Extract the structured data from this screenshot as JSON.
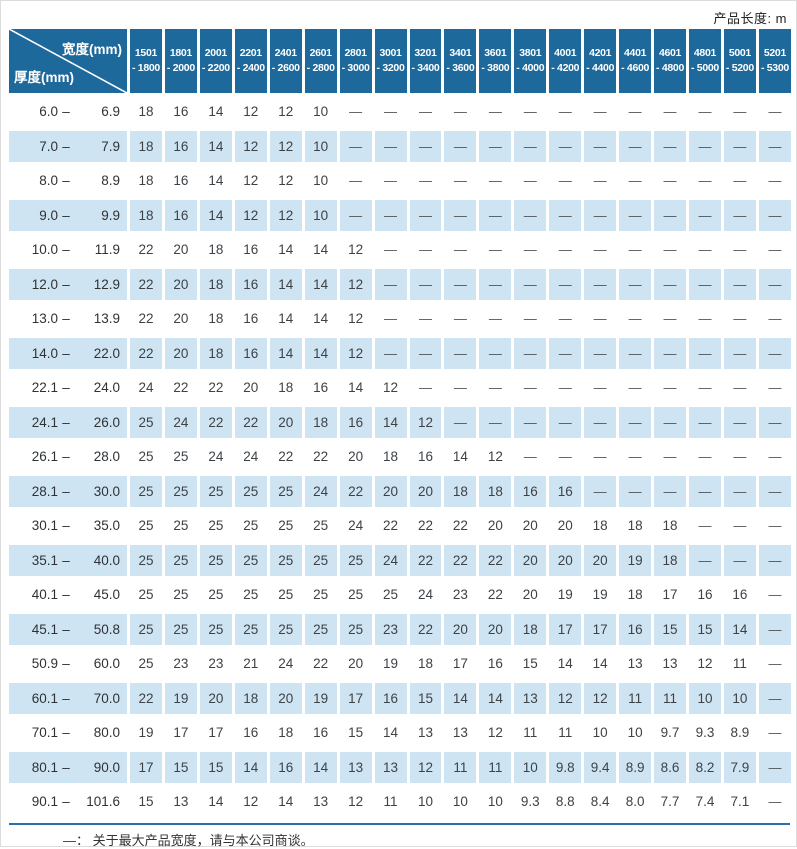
{
  "header_note": "产品长度: m",
  "footnote": "—： 关于最大产品宽度，请与本公司商谈。",
  "colors": {
    "header_blue": "#1d699c",
    "row_blue": "#cfe4f2",
    "rule_blue": "#2b6ea9",
    "text": "#3d4247"
  },
  "table": {
    "corner": {
      "top_right": "宽度(mm)",
      "bottom_left": "厚度(mm)"
    },
    "columns": [
      "1501 - 1800",
      "1801 - 2000",
      "2001 - 2200",
      "2201 - 2400",
      "2401 - 2600",
      "2601 - 2800",
      "2801 - 3000",
      "3001 - 3200",
      "3201 - 3400",
      "3401 - 3600",
      "3601 - 3800",
      "3801 - 4000",
      "4001 - 4200",
      "4201 - 4400",
      "4401 - 4600",
      "4601 - 4800",
      "4801 - 5000",
      "5001 - 5200",
      "5201 - 5300"
    ],
    "rows": [
      {
        "label": "6.0 – 6.9",
        "values": [
          "18",
          "16",
          "14",
          "12",
          "12",
          "10",
          "—",
          "—",
          "—",
          "—",
          "—",
          "—",
          "—",
          "—",
          "—",
          "—",
          "—",
          "—",
          "—"
        ]
      },
      {
        "label": "7.0 – 7.9",
        "values": [
          "18",
          "16",
          "14",
          "12",
          "12",
          "10",
          "—",
          "—",
          "—",
          "—",
          "—",
          "—",
          "—",
          "—",
          "—",
          "—",
          "—",
          "—",
          "—"
        ]
      },
      {
        "label": "8.0 – 8.9",
        "values": [
          "18",
          "16",
          "14",
          "12",
          "12",
          "10",
          "—",
          "—",
          "—",
          "—",
          "—",
          "—",
          "—",
          "—",
          "—",
          "—",
          "—",
          "—",
          "—"
        ]
      },
      {
        "label": "9.0 – 9.9",
        "values": [
          "18",
          "16",
          "14",
          "12",
          "12",
          "10",
          "—",
          "—",
          "—",
          "—",
          "—",
          "—",
          "—",
          "—",
          "—",
          "—",
          "—",
          "—",
          "—"
        ]
      },
      {
        "label": "10.0 – 11.9",
        "values": [
          "22",
          "20",
          "18",
          "16",
          "14",
          "14",
          "12",
          "—",
          "—",
          "—",
          "—",
          "—",
          "—",
          "—",
          "—",
          "—",
          "—",
          "—",
          "—"
        ]
      },
      {
        "label": "12.0 – 12.9",
        "values": [
          "22",
          "20",
          "18",
          "16",
          "14",
          "14",
          "12",
          "—",
          "—",
          "—",
          "—",
          "—",
          "—",
          "—",
          "—",
          "—",
          "—",
          "—",
          "—"
        ]
      },
      {
        "label": "13.0 – 13.9",
        "values": [
          "22",
          "20",
          "18",
          "16",
          "14",
          "14",
          "12",
          "—",
          "—",
          "—",
          "—",
          "—",
          "—",
          "—",
          "—",
          "—",
          "—",
          "—",
          "—"
        ]
      },
      {
        "label": "14.0 – 22.0",
        "values": [
          "22",
          "20",
          "18",
          "16",
          "14",
          "14",
          "12",
          "—",
          "—",
          "—",
          "—",
          "—",
          "—",
          "—",
          "—",
          "—",
          "—",
          "—",
          "—"
        ]
      },
      {
        "label": "22.1 – 24.0",
        "values": [
          "24",
          "22",
          "22",
          "20",
          "18",
          "16",
          "14",
          "12",
          "—",
          "—",
          "—",
          "—",
          "—",
          "—",
          "—",
          "—",
          "—",
          "—",
          "—"
        ]
      },
      {
        "label": "24.1 – 26.0",
        "values": [
          "25",
          "24",
          "22",
          "22",
          "20",
          "18",
          "16",
          "14",
          "12",
          "—",
          "—",
          "—",
          "—",
          "—",
          "—",
          "—",
          "—",
          "—",
          "—"
        ]
      },
      {
        "label": "26.1 – 28.0",
        "values": [
          "25",
          "25",
          "24",
          "24",
          "22",
          "22",
          "20",
          "18",
          "16",
          "14",
          "12",
          "—",
          "—",
          "—",
          "—",
          "—",
          "—",
          "—",
          "—"
        ]
      },
      {
        "label": "28.1 – 30.0",
        "values": [
          "25",
          "25",
          "25",
          "25",
          "25",
          "24",
          "22",
          "20",
          "20",
          "18",
          "18",
          "16",
          "16",
          "—",
          "—",
          "—",
          "—",
          "—",
          "—"
        ]
      },
      {
        "label": "30.1 – 35.0",
        "values": [
          "25",
          "25",
          "25",
          "25",
          "25",
          "25",
          "24",
          "22",
          "22",
          "22",
          "20",
          "20",
          "20",
          "18",
          "18",
          "18",
          "—",
          "—",
          "—"
        ]
      },
      {
        "label": "35.1 – 40.0",
        "values": [
          "25",
          "25",
          "25",
          "25",
          "25",
          "25",
          "25",
          "24",
          "22",
          "22",
          "22",
          "20",
          "20",
          "20",
          "19",
          "18",
          "—",
          "—",
          "—"
        ]
      },
      {
        "label": "40.1 – 45.0",
        "values": [
          "25",
          "25",
          "25",
          "25",
          "25",
          "25",
          "25",
          "25",
          "24",
          "23",
          "22",
          "20",
          "19",
          "19",
          "18",
          "17",
          "16",
          "16",
          "—"
        ]
      },
      {
        "label": "45.1 – 50.8",
        "values": [
          "25",
          "25",
          "25",
          "25",
          "25",
          "25",
          "25",
          "23",
          "22",
          "20",
          "20",
          "18",
          "17",
          "17",
          "16",
          "15",
          "15",
          "14",
          "—"
        ]
      },
      {
        "label": "50.9 – 60.0",
        "values": [
          "25",
          "23",
          "23",
          "21",
          "24",
          "22",
          "20",
          "19",
          "18",
          "17",
          "16",
          "15",
          "14",
          "14",
          "13",
          "13",
          "12",
          "11",
          "—"
        ]
      },
      {
        "label": "60.1 – 70.0",
        "values": [
          "22",
          "19",
          "20",
          "18",
          "20",
          "19",
          "17",
          "16",
          "15",
          "14",
          "14",
          "13",
          "12",
          "12",
          "11",
          "11",
          "10",
          "10",
          "—"
        ]
      },
      {
        "label": "70.1 – 80.0",
        "values": [
          "19",
          "17",
          "17",
          "16",
          "18",
          "16",
          "15",
          "14",
          "13",
          "13",
          "12",
          "11",
          "11",
          "10",
          "10",
          "9.7",
          "9.3",
          "8.9",
          "—"
        ]
      },
      {
        "label": "80.1 – 90.0",
        "values": [
          "17",
          "15",
          "15",
          "14",
          "16",
          "14",
          "13",
          "13",
          "12",
          "11",
          "11",
          "10",
          "9.8",
          "9.4",
          "8.9",
          "8.6",
          "8.2",
          "7.9",
          "—"
        ]
      },
      {
        "label": "90.1 – 101.6",
        "values": [
          "15",
          "13",
          "14",
          "12",
          "14",
          "13",
          "12",
          "11",
          "10",
          "10",
          "10",
          "9.3",
          "8.8",
          "8.4",
          "8.0",
          "7.7",
          "7.4",
          "7.1",
          "—"
        ]
      }
    ]
  }
}
